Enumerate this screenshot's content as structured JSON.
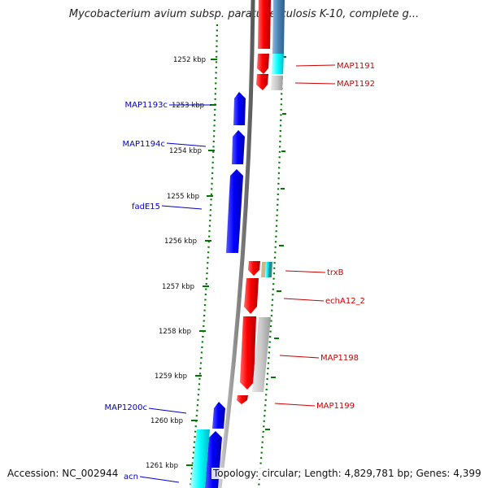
{
  "title": "Mycobacterium avium subsp. paratuberculosis K-10, complete g...",
  "footer": {
    "accession": "Accession: NC_002944",
    "topology": "Topology: circular; Length: 4,829,781 bp; Genes: 4,399"
  },
  "ticks": [
    "1252 kbp",
    "1253 kbp",
    "1254 kbp",
    "1255 kbp",
    "1256 kbp",
    "1257 kbp",
    "1258 kbp",
    "1259 kbp",
    "1260 kbp",
    "1261 kbp"
  ],
  "genes_left": [
    {
      "name": "MAP1193c",
      "color": "#0000cc"
    },
    {
      "name": "MAP1194c",
      "color": "#0000cc"
    },
    {
      "name": "fadE15",
      "color": "#0000cc"
    },
    {
      "name": "MAP1200c",
      "color": "#0000cc"
    },
    {
      "name": "acn",
      "color": "#0000cc"
    }
  ],
  "genes_right": [
    {
      "name": "MAP1191",
      "color": "#cc0000"
    },
    {
      "name": "MAP1192",
      "color": "#cc0000"
    },
    {
      "name": "trxB",
      "color": "#cc0000"
    },
    {
      "name": "echA12_2",
      "color": "#cc0000"
    },
    {
      "name": "MAP1198",
      "color": "#cc0000"
    },
    {
      "name": "MAP1199",
      "color": "#cc0000"
    }
  ],
  "colors": {
    "forward_cds": "#ff0000",
    "reverse_cds": "#0000ff",
    "backbone": "#888888",
    "gc_skew": "#007700",
    "cyan_feature": "#00ffff",
    "steel_feature": "#4682b4",
    "gray_feature": "#c0c0c0"
  }
}
